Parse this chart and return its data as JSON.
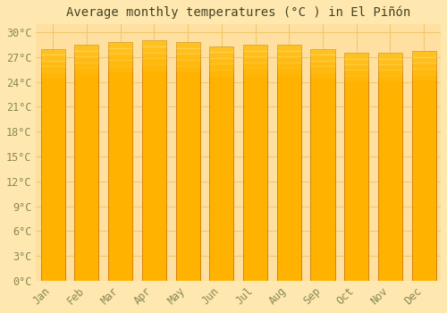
{
  "title": "Average monthly temperatures (°C ) in El Piñón",
  "months": [
    "Jan",
    "Feb",
    "Mar",
    "Apr",
    "May",
    "Jun",
    "Jul",
    "Aug",
    "Sep",
    "Oct",
    "Nov",
    "Dec"
  ],
  "values": [
    28.0,
    28.5,
    28.8,
    29.0,
    28.8,
    28.3,
    28.5,
    28.5,
    28.0,
    27.5,
    27.5,
    27.7
  ],
  "bar_color_top": "#FFCC44",
  "bar_color_bottom": "#FF9900",
  "bar_edge_color": "#CC7700",
  "background_color": "#FFE8B0",
  "plot_bg_color": "#FFE0A0",
  "grid_color": "#F0C870",
  "yticks": [
    0,
    3,
    6,
    9,
    12,
    15,
    18,
    21,
    24,
    27,
    30
  ],
  "ylim": [
    0,
    31
  ],
  "title_fontsize": 10,
  "tick_fontsize": 8.5,
  "tick_color": "#888855"
}
